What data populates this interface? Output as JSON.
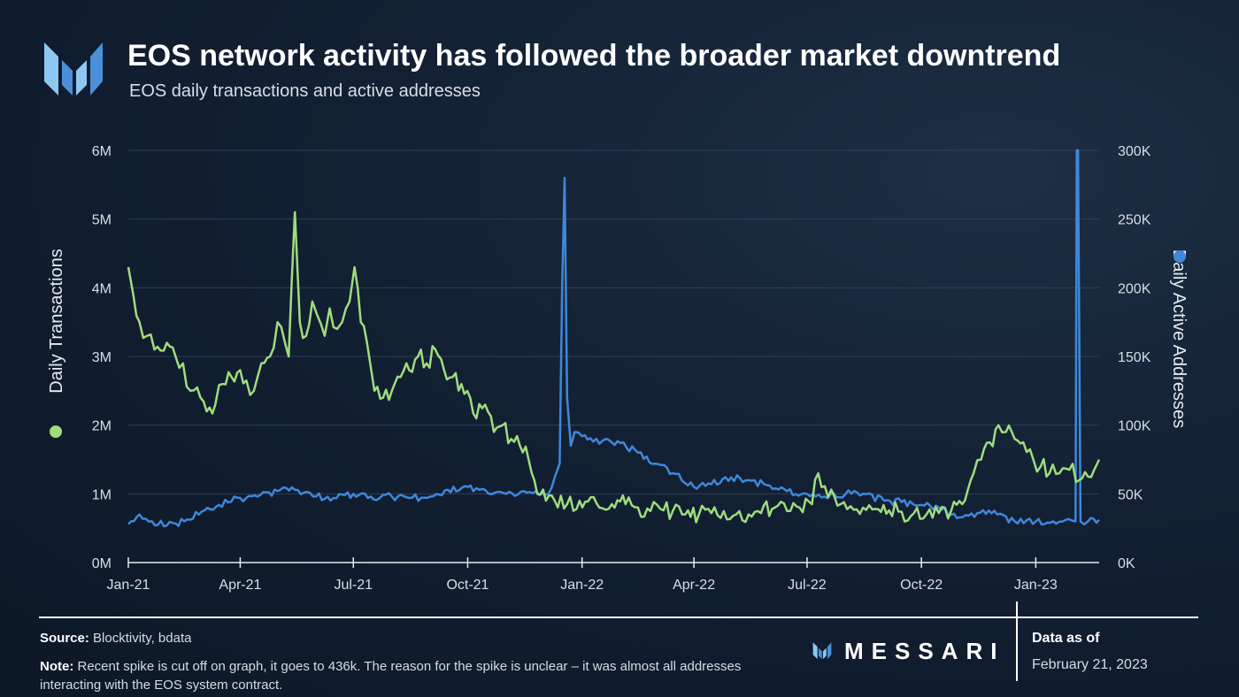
{
  "header": {
    "title": "EOS network activity has followed the broader market downtrend",
    "subtitle": "EOS daily transactions and active addresses"
  },
  "footer": {
    "source_label": "Source:",
    "source_text": "Blocktivity, bdata",
    "note_label": "Note:",
    "note_text": "Recent spike is cut off on graph, it goes to 436k. The reason for the spike is unclear – it was almost all addresses interacting with the EOS system contract.",
    "brand": "MESSARI",
    "data_as_of_label": "Data as of",
    "data_as_of_date": "February 21, 2023"
  },
  "colors": {
    "transactions": "#9fdc7e",
    "addresses": "#3f87db",
    "grid": "#2e3f55",
    "axis_text": "#d8dee6",
    "logo": "#4a90d9"
  },
  "chart_data": {
    "type": "line",
    "title": "EOS network activity has followed the broader market downtrend",
    "subtitle": "EOS daily transactions and active addresses",
    "x_ticks": [
      "Jan-21",
      "Apr-21",
      "Jul-21",
      "Oct-21",
      "Jan-22",
      "Apr-22",
      "Jul-22",
      "Oct-22",
      "Jan-23"
    ],
    "x_tick_dates": [
      "2021-01-01",
      "2021-04-01",
      "2021-07-01",
      "2021-10-01",
      "2022-01-01",
      "2022-04-01",
      "2022-07-01",
      "2022-10-01",
      "2023-01-01"
    ],
    "xlim": [
      "2021-01-01",
      "2023-02-21"
    ],
    "y_left": {
      "label": "Daily Transactions",
      "ticks": [
        "0M",
        "1M",
        "2M",
        "3M",
        "4M",
        "5M",
        "6M"
      ],
      "range": [
        0,
        6000000
      ]
    },
    "y_right": {
      "label": "Daily Active Addresses",
      "ticks": [
        "0K",
        "50K",
        "100K",
        "150K",
        "200K",
        "250K",
        "300K"
      ],
      "range": [
        0,
        300000
      ]
    },
    "grid": true,
    "legend_placement": "axis labels (left and right)",
    "series": [
      {
        "name": "Daily Transactions",
        "axis": "left",
        "x": [
          "2021-01-01",
          "2021-01-05",
          "2021-01-10",
          "2021-01-16",
          "2021-01-22",
          "2021-02-01",
          "2021-02-08",
          "2021-02-14",
          "2021-02-20",
          "2021-02-28",
          "2021-03-05",
          "2021-03-12",
          "2021-03-18",
          "2021-03-25",
          "2021-04-01",
          "2021-04-06",
          "2021-04-12",
          "2021-04-18",
          "2021-04-25",
          "2021-05-01",
          "2021-05-07",
          "2021-05-10",
          "2021-05-15",
          "2021-05-19",
          "2021-05-24",
          "2021-05-29",
          "2021-06-02",
          "2021-06-08",
          "2021-06-12",
          "2021-06-18",
          "2021-06-22",
          "2021-06-28",
          "2021-07-02",
          "2021-07-07",
          "2021-07-12",
          "2021-07-18",
          "2021-07-25",
          "2021-08-01",
          "2021-08-08",
          "2021-08-15",
          "2021-08-22",
          "2021-08-29",
          "2021-09-05",
          "2021-09-12",
          "2021-09-19",
          "2021-09-26",
          "2021-10-03",
          "2021-10-08",
          "2021-10-15",
          "2021-10-22",
          "2021-10-29",
          "2021-11-05",
          "2021-11-12",
          "2021-11-19",
          "2021-11-26",
          "2021-12-03",
          "2021-12-10",
          "2021-12-20",
          "2021-12-30",
          "2022-01-08",
          "2022-01-15",
          "2022-01-25",
          "2022-02-05",
          "2022-02-15",
          "2022-02-25",
          "2022-03-05",
          "2022-03-15",
          "2022-03-25",
          "2022-04-05",
          "2022-04-15",
          "2022-04-25",
          "2022-05-05",
          "2022-05-15",
          "2022-05-25",
          "2022-06-05",
          "2022-06-15",
          "2022-06-25",
          "2022-07-05",
          "2022-07-10",
          "2022-07-18",
          "2022-07-28",
          "2022-08-05",
          "2022-08-15",
          "2022-08-25",
          "2022-09-05",
          "2022-09-15",
          "2022-09-25",
          "2022-10-05",
          "2022-10-15",
          "2022-10-25",
          "2022-11-05",
          "2022-11-12",
          "2022-11-18",
          "2022-11-25",
          "2022-12-02",
          "2022-12-08",
          "2022-12-15",
          "2022-12-22",
          "2022-12-30",
          "2023-01-05",
          "2023-01-12",
          "2023-01-20",
          "2023-01-28",
          "2023-02-05",
          "2023-02-12",
          "2023-02-17",
          "2023-02-21"
        ],
        "values": [
          4300000,
          3900000,
          3500000,
          3300000,
          3100000,
          3200000,
          3000000,
          2900000,
          2500000,
          2400000,
          2200000,
          2300000,
          2600000,
          2700000,
          2800000,
          2650000,
          2500000,
          2900000,
          3000000,
          3500000,
          3200000,
          3000000,
          5100000,
          3500000,
          3300000,
          3800000,
          3600000,
          3300000,
          3700000,
          3400000,
          3500000,
          3800000,
          4300000,
          3500000,
          3200000,
          2500000,
          2400000,
          2500000,
          2700000,
          2800000,
          3000000,
          2900000,
          3100000,
          2800000,
          2700000,
          2600000,
          2400000,
          2100000,
          2300000,
          1900000,
          2000000,
          1800000,
          1700000,
          1500000,
          1000000,
          900000,
          900000,
          850000,
          900000,
          950000,
          800000,
          850000,
          850000,
          800000,
          750000,
          780000,
          750000,
          700000,
          700000,
          720000,
          750000,
          700000,
          700000,
          720000,
          800000,
          750000,
          800000,
          850000,
          1300000,
          950000,
          850000,
          820000,
          800000,
          780000,
          760000,
          740000,
          720000,
          700000,
          720000,
          760000,
          900000,
          1300000,
          1500000,
          1750000,
          2000000,
          1900000,
          1800000,
          1750000,
          1500000,
          1400000,
          1300000,
          1300000,
          1350000,
          1200000,
          1250000,
          1350000,
          1500000
        ]
      },
      {
        "name": "Daily Active Addresses",
        "axis": "right",
        "x": [
          "2021-01-01",
          "2021-01-10",
          "2021-01-20",
          "2021-02-01",
          "2021-02-15",
          "2021-03-01",
          "2021-03-15",
          "2021-04-01",
          "2021-04-15",
          "2021-05-01",
          "2021-05-15",
          "2021-06-01",
          "2021-06-15",
          "2021-07-01",
          "2021-07-15",
          "2021-08-01",
          "2021-08-15",
          "2021-09-01",
          "2021-09-15",
          "2021-10-01",
          "2021-10-15",
          "2021-11-01",
          "2021-11-15",
          "2021-11-25",
          "2021-12-05",
          "2021-12-10",
          "2021-12-14",
          "2021-12-16",
          "2021-12-18",
          "2021-12-20",
          "2021-12-23",
          "2021-12-26",
          "2022-01-01",
          "2022-01-10",
          "2022-01-20",
          "2022-02-01",
          "2022-02-15",
          "2022-03-01",
          "2022-03-15",
          "2022-04-01",
          "2022-04-15",
          "2022-05-01",
          "2022-05-15",
          "2022-06-01",
          "2022-06-15",
          "2022-07-01",
          "2022-07-15",
          "2022-08-01",
          "2022-08-15",
          "2022-09-01",
          "2022-09-15",
          "2022-10-01",
          "2022-10-15",
          "2022-11-01",
          "2022-11-15",
          "2022-12-01",
          "2022-12-15",
          "2023-01-01",
          "2023-01-15",
          "2023-01-25",
          "2023-02-02",
          "2023-02-03",
          "2023-02-04",
          "2023-02-06",
          "2023-02-12",
          "2023-02-21"
        ],
        "values": [
          28000,
          35000,
          30000,
          27000,
          30000,
          37000,
          42000,
          47000,
          48000,
          52000,
          53000,
          48000,
          47000,
          50000,
          48000,
          48000,
          47000,
          48000,
          53000,
          55000,
          53000,
          50000,
          52000,
          52000,
          50000,
          62000,
          72000,
          200000,
          280000,
          120000,
          85000,
          95000,
          92000,
          88000,
          90000,
          87000,
          80000,
          72000,
          65000,
          55000,
          57000,
          62000,
          60000,
          56000,
          52000,
          50000,
          48000,
          50000,
          50000,
          45000,
          44000,
          42000,
          40000,
          33000,
          36000,
          35000,
          30000,
          30000,
          30000,
          31000,
          30000,
          300000,
          300000,
          30000,
          30000,
          31000
        ]
      }
    ]
  }
}
